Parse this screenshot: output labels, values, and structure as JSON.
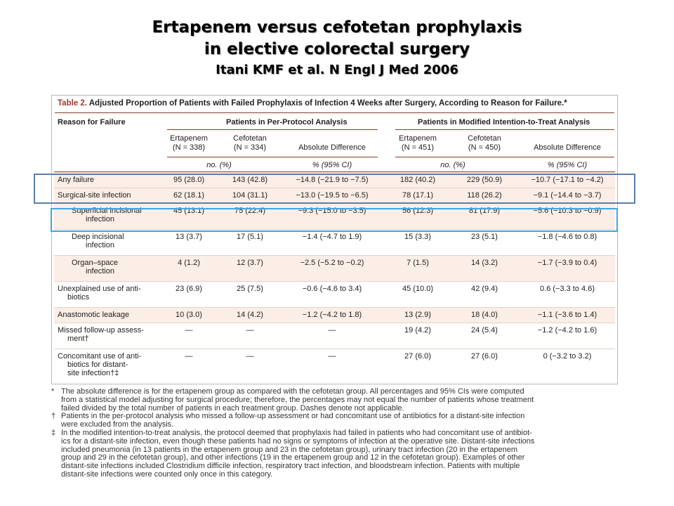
{
  "title": {
    "line1": "Ertapenem versus cefotetan prophylaxis",
    "line2": "in elective colorectal surgery",
    "line3": "Itani KMF et al. N Engl J Med 2006"
  },
  "table": {
    "caption_lead": "Table 2.",
    "caption_rest": " Adjusted Proportion of Patients with Failed Prophylaxis of Infection 4 Weeks after Surgery, According to Reason for Failure.*",
    "group_header_reason": "Reason for Failure",
    "group_header_pp": "Patients in Per-Protocol Analysis",
    "group_header_mitt": "Patients in Modified Intention-to-Treat Analysis",
    "columns": {
      "pp_ertapenem_1": "Ertapenem",
      "pp_ertapenem_2": "(N = 338)",
      "pp_cefotetan_1": "Cefotetan",
      "pp_cefotetan_2": "(N = 334)",
      "pp_absdiff": "Absolute Difference",
      "mitt_ertapenem_1": "Ertapenem",
      "mitt_ertapenem_2": "(N = 451)",
      "mitt_cefotetan_1": "Cefotetan",
      "mitt_cefotetan_2": "(N = 450)",
      "mitt_absdiff": "Absolute Difference",
      "units_no": "no. (%)",
      "units_ci": "% (95% CI)"
    },
    "rows": [
      {
        "reason_1": "Any failure",
        "reason_2": "",
        "indent": false,
        "shaded": true,
        "pp_ert": "95 (28.0)",
        "pp_cef": "143 (42.8)",
        "pp_diff": "−14.8 (−21.9 to −7.5)",
        "mitt_ert": "182 (40.2)",
        "mitt_cef": "229 (50.9)",
        "mitt_diff": "−10.7 (−17.1 to −4.2)"
      },
      {
        "reason_1": "Surgical-site infection",
        "reason_2": "",
        "indent": false,
        "shaded": true,
        "pp_ert": "62 (18.1)",
        "pp_cef": "104 (31.1)",
        "pp_diff": "−13.0 (−19.5 to −6.5)",
        "mitt_ert": "78 (17.1)",
        "mitt_cef": "118 (26.2)",
        "mitt_diff": "−9.1 (−14.4 to −3.7)"
      },
      {
        "reason_1": "Superficial incisional",
        "reason_2": "infection",
        "indent": true,
        "shaded": true,
        "pp_ert": "45 (13.1)",
        "pp_cef": "75 (22.4)",
        "pp_diff": "−9.3 (−15.0 to −3.5)",
        "mitt_ert": "56 (12.3)",
        "mitt_cef": "81 (17.9)",
        "mitt_diff": "−5.6 (−10.3 to −0.9)"
      },
      {
        "reason_1": "Deep incisional",
        "reason_2": "infection",
        "indent": true,
        "shaded": false,
        "pp_ert": "13 (3.7)",
        "pp_cef": "17 (5.1)",
        "pp_diff": "−1.4 (−4.7 to 1.9)",
        "mitt_ert": "15 (3.3)",
        "mitt_cef": "23 (5.1)",
        "mitt_diff": "−1.8 (−4.6 to 0.8)"
      },
      {
        "reason_1": "Organ–space",
        "reason_2": "infection",
        "indent": true,
        "shaded": true,
        "pp_ert": "4 (1.2)",
        "pp_cef": "12 (3.7)",
        "pp_diff": "−2.5 (−5.2 to −0.2)",
        "mitt_ert": "7 (1.5)",
        "mitt_cef": "14 (3.2)",
        "mitt_diff": "−1.7 (−3.9 to 0.4)"
      },
      {
        "reason_1": "Unexplained use of anti-",
        "reason_2": "biotics",
        "indent": false,
        "shaded": false,
        "pp_ert": "23 (6.9)",
        "pp_cef": "25 (7.5)",
        "pp_diff": "−0.6 (−4.6 to 3.4)",
        "mitt_ert": "45 (10.0)",
        "mitt_cef": "42 (9.4)",
        "mitt_diff": "0.6 (−3.3 to 4.6)"
      },
      {
        "reason_1": "Anastomotic leakage",
        "reason_2": "",
        "indent": false,
        "shaded": true,
        "pp_ert": "10 (3.0)",
        "pp_cef": "14 (4.2)",
        "pp_diff": "−1.2 (−4.2 to 1.8)",
        "mitt_ert": "13 (2.9)",
        "mitt_cef": "18 (4.0)",
        "mitt_diff": "−1.1 (−3.6 to 1.4)"
      },
      {
        "reason_1": "Missed follow-up assess-",
        "reason_2": "ment†",
        "indent": false,
        "shaded": false,
        "pp_ert": "—",
        "pp_cef": "—",
        "pp_diff": "—",
        "mitt_ert": "19 (4.2)",
        "mitt_cef": "24 (5.4)",
        "mitt_diff": "−1.2 (−4.2 to 1.6)"
      },
      {
        "reason_1": "Concomitant use of anti-",
        "reason_2": "biotics for distant-",
        "reason_3": "site infection†‡",
        "indent": false,
        "shaded": false,
        "pp_ert": "—",
        "pp_cef": "—",
        "pp_diff": "—",
        "mitt_ert": "27 (6.0)",
        "mitt_cef": "27 (6.0)",
        "mitt_diff": "0 (−3.2 to 3.2)"
      }
    ],
    "footnotes": [
      {
        "symbol": "*",
        "lines": [
          "The absolute difference is for the ertapenem group as compared with the cefotetan group. All percentages and 95% CIs were computed",
          "from a statistical model adjusting for surgical procedure; therefore, the percentages may not equal the number of patients whose treatment",
          "failed divided by the total number of patients in each treatment group. Dashes denote not applicable."
        ]
      },
      {
        "symbol": "†",
        "lines": [
          "Patients in the per-protocol analysis who missed a follow-up assessment or had concomitant use of antibiotics for a distant-site infection",
          "were excluded from the analysis."
        ]
      },
      {
        "symbol": "‡",
        "lines": [
          "In the modified intention-to-treat analysis, the protocol deemed that prophylaxis had failed in patients who had concomitant use of antibiot-",
          "ics for a distant-site infection, even though these patients had no signs or symptoms of infection at the operative site. Distant-site infections",
          "included pneumonia (in 13 patients in the ertapenem group and 23 in the cefotetan group), urinary tract infection (20 in the ertapenem",
          "group and 29 in the cefotetan group), and other infections (19 in the ertapenem group and 12 in the cefotetan group). Examples of other",
          "distant-site infections included Clostridium difficile infection, respiratory tract infection, and bloodstream infection. Patients with multiple",
          "distant-site infections were counted only once in this category."
        ]
      }
    ]
  },
  "colors": {
    "caption_lead": "#9d3a2a",
    "rule": "#8a3a30",
    "row_shading": "#fbeee6",
    "highlight_dark": "#5b7fa8",
    "highlight_light": "#3fa6e3"
  }
}
